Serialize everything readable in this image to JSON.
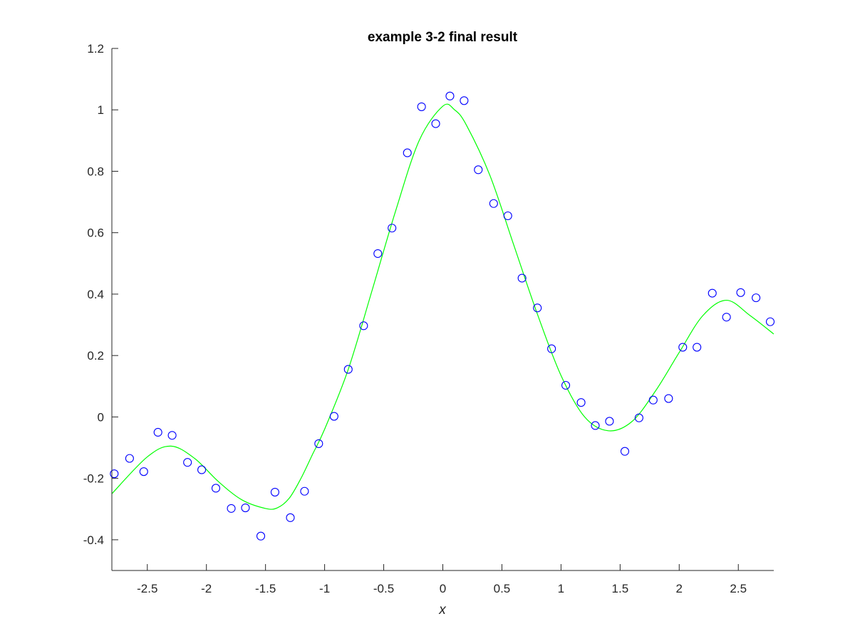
{
  "chart_data": {
    "type": "scatter",
    "title": "example 3-2 final result",
    "xlabel": "x",
    "ylabel": "",
    "xlim": [
      -2.8,
      2.8
    ],
    "ylim": [
      -0.5,
      1.2
    ],
    "x_ticks": [
      -2.5,
      -2,
      -1.5,
      -1,
      -0.5,
      0,
      0.5,
      1,
      1.5,
      2,
      2.5
    ],
    "x_tick_labels": [
      "-2.5",
      "-2",
      "-1.5",
      "-1",
      "-0.5",
      "0",
      "0.5",
      "1",
      "1.5",
      "2",
      "2.5"
    ],
    "y_ticks": [
      -0.4,
      -0.2,
      0,
      0.2,
      0.4,
      0.6,
      0.8,
      1,
      1.2
    ],
    "y_tick_labels": [
      "-0.4",
      "-0.2",
      "0",
      "0.2",
      "0.4",
      "0.6",
      "0.8",
      "1",
      "1.2"
    ],
    "grid": false,
    "box": false,
    "colors": {
      "points": "#0000ff",
      "fit": "#00ff00",
      "axes": "#262626"
    },
    "series": [
      {
        "kind": "scatter",
        "marker": "circle-open",
        "x": [
          -2.78,
          -2.65,
          -2.53,
          -2.41,
          -2.29,
          -2.16,
          -2.04,
          -1.92,
          -1.79,
          -1.67,
          -1.54,
          -1.42,
          -1.29,
          -1.17,
          -1.05,
          -0.92,
          -0.8,
          -0.67,
          -0.55,
          -0.43,
          -0.3,
          -0.18,
          -0.06,
          0.06,
          0.18,
          0.3,
          0.43,
          0.55,
          0.67,
          0.8,
          0.92,
          1.04,
          1.17,
          1.29,
          1.41,
          1.54,
          1.66,
          1.78,
          1.91,
          2.03,
          2.15,
          2.28,
          2.4,
          2.52,
          2.65,
          2.77
        ],
        "y": [
          -0.185,
          -0.135,
          -0.178,
          -0.05,
          -0.06,
          -0.148,
          -0.172,
          -0.232,
          -0.298,
          -0.296,
          -0.388,
          -0.245,
          -0.328,
          -0.242,
          -0.087,
          0.002,
          0.155,
          0.297,
          0.532,
          0.615,
          0.86,
          1.01,
          0.955,
          1.045,
          1.03,
          0.805,
          0.695,
          0.655,
          0.452,
          0.355,
          0.222,
          0.103,
          0.047,
          -0.028,
          -0.014,
          -0.112,
          -0.003,
          0.055,
          0.06,
          0.227,
          0.227,
          0.403,
          0.325,
          0.405,
          0.388,
          0.31
        ]
      },
      {
        "kind": "line",
        "x": [
          -2.8,
          -2.5,
          -2.3,
          -2.1,
          -1.9,
          -1.7,
          -1.5,
          -1.4,
          -1.3,
          -1.2,
          -1.1,
          -1.0,
          -0.8,
          -0.6,
          -0.4,
          -0.2,
          0.0,
          0.1,
          0.2,
          0.4,
          0.6,
          0.8,
          1.0,
          1.2,
          1.4,
          1.6,
          1.8,
          2.0,
          2.2,
          2.4,
          2.6,
          2.8
        ],
        "y": [
          -0.25,
          -0.13,
          -0.095,
          -0.135,
          -0.21,
          -0.27,
          -0.298,
          -0.296,
          -0.265,
          -0.2,
          -0.12,
          -0.04,
          0.155,
          0.41,
          0.67,
          0.9,
          1.012,
          1.0,
          0.95,
          0.785,
          0.56,
          0.335,
          0.135,
          0.0,
          -0.045,
          -0.015,
          0.085,
          0.21,
          0.33,
          0.38,
          0.33,
          0.27
        ]
      }
    ]
  }
}
